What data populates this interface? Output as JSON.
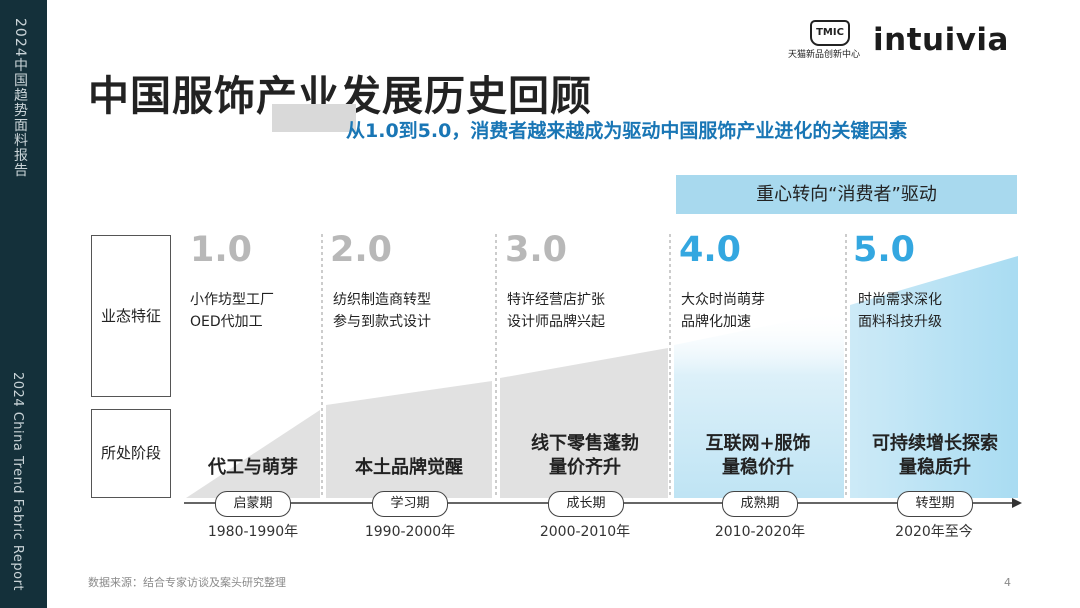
{
  "sidebar": {
    "top_text": "2024中国趋势面料报告",
    "bottom_text": "2024 China Trend Fabric Report"
  },
  "logos": {
    "tmic": "TMIC",
    "tmic_sub": "天猫新品创新中心",
    "intuivia": "intuivia"
  },
  "title": "中国服饰产业发展历史回顾",
  "subtitle": "从1.0到5.0，消费者越来越成为驱动中国服饰产业进化的关键因素",
  "banner": "重心转向“消费者”驱动",
  "row_labels": {
    "features": "业态特征",
    "stage": "所处阶段"
  },
  "stages": [
    {
      "num": "1.0",
      "desc": "小作坊型工厂\nOED代加工",
      "main": "代工与萌芽",
      "period": "启蒙期",
      "years": "1980-1990年"
    },
    {
      "num": "2.0",
      "desc": "纺织制造商转型\n参与到款式设计",
      "main": "本土品牌觉醒",
      "period": "学习期",
      "years": "1990-2000年"
    },
    {
      "num": "3.0",
      "desc": "特许经营店扩张\n设计师品牌兴起",
      "main": "线下零售蓬勃\n量价齐升",
      "period": "成长期",
      "years": "2000-2010年"
    },
    {
      "num": "4.0",
      "desc": "大众时尚萌芽\n品牌化加速",
      "main": "互联网+服饰\n量稳价升",
      "period": "成熟期",
      "years": "2010-2020年"
    },
    {
      "num": "5.0",
      "desc": "时尚需求深化\n面料科技升级",
      "main": "可持续增长探索\n量稳质升",
      "period": "转型期",
      "years": "2020年至今"
    }
  ],
  "source": "数据来源：结合专家访谈及案头研究整理",
  "page_number": "4",
  "colors": {
    "sidebar": "#14303a",
    "accent_blue": "#1976b5",
    "stage_blue": "#34a7e0",
    "banner": "#a8d9ee",
    "gray_area": "#e1e1e1"
  }
}
